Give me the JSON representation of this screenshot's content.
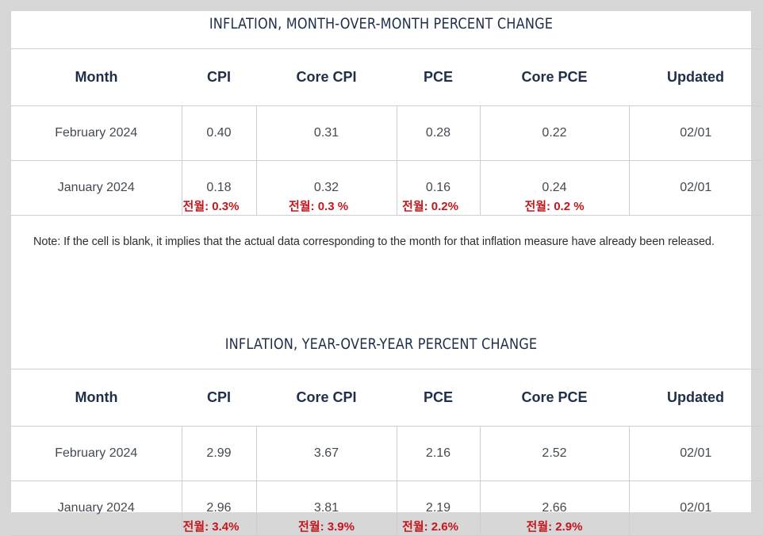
{
  "mom": {
    "title": "INFLATION, MONTH-OVER-MONTH PERCENT CHANGE",
    "headers": [
      "Month",
      "CPI",
      "Core CPI",
      "PCE",
      "Core PCE",
      "Updated"
    ],
    "rows": [
      {
        "month": "February 2024",
        "cpi": "0.40",
        "core_cpi": "0.31",
        "pce": "0.28",
        "core_pce": "0.22",
        "updated": "02/01"
      },
      {
        "month": "January 2024",
        "cpi": "0.18",
        "core_cpi": "0.32",
        "pce": "0.16",
        "core_pce": "0.24",
        "updated": "02/01",
        "prev": {
          "cpi": "전월: 0.3%",
          "core_cpi": "전월: 0.3 %",
          "pce": "전월: 0.2%",
          "core_pce": "전월: 0.2 %"
        }
      }
    ]
  },
  "note": "Note: If the cell is blank, it implies that the actual data corresponding to the month for that inflation measure have already been released.",
  "yoy": {
    "title": "INFLATION, YEAR-OVER-YEAR PERCENT CHANGE",
    "headers": [
      "Month",
      "CPI",
      "Core CPI",
      "PCE",
      "Core PCE",
      "Updated"
    ],
    "rows": [
      {
        "month": "February 2024",
        "cpi": "2.99",
        "core_cpi": "3.67",
        "pce": "2.16",
        "core_pce": "2.52",
        "updated": "02/01"
      },
      {
        "month": "January 2024",
        "cpi": "2.96",
        "core_cpi": "3.81",
        "pce": "2.19",
        "core_pce": "2.66",
        "updated": "02/01",
        "prev": {
          "cpi": "전월: 3.4%",
          "core_cpi": "전월: 3.9%",
          "pce": "전월: 2.6%",
          "core_pce": "전월: 2.9%"
        }
      }
    ]
  },
  "colors": {
    "heading": "#1f2f4a",
    "annotation": "#c4161c",
    "border": "#cfcfcf"
  }
}
